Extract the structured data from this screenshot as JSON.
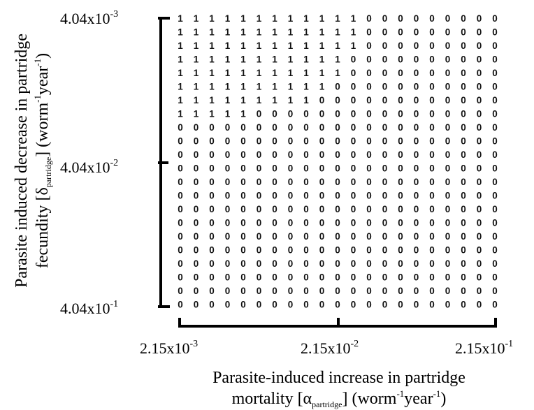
{
  "chart_data": {
    "type": "heatmap",
    "xlabel": {
      "line1": "Parasite-induced increase in partridge",
      "line2_prefix": "mortality [α",
      "line2_subscript": "partridge",
      "line2_mid": "] (worm",
      "line2_sup1": "-1",
      "line2_year": "year",
      "line2_sup2": "-1",
      "line2_end": ")"
    },
    "ylabel": {
      "line1": "Parasite induced decrease in partridge",
      "line2_prefix": "fecundity [δ",
      "line2_subscript": "partridge",
      "line2_mid": "] (worm",
      "line2_sup1": "-1",
      "line2_year": "year",
      "line2_sup2": "-1",
      "line2_end": ")"
    },
    "x_ticks": [
      {
        "base": "2.15x10",
        "exp": "-3"
      },
      {
        "base": "2.15x10",
        "exp": "-2"
      },
      {
        "base": "2.15x10",
        "exp": "-1"
      }
    ],
    "y_ticks": [
      {
        "base": "4.04x10",
        "exp": "-3"
      },
      {
        "base": "4.04x10",
        "exp": "-2"
      },
      {
        "base": "4.04x10",
        "exp": "-1"
      }
    ],
    "x_scale": "log",
    "y_scale": "log",
    "ncols": 21,
    "nrows": 22,
    "ones_per_row": [
      12,
      12,
      12,
      11,
      11,
      10,
      9,
      5,
      0,
      0,
      0,
      0,
      0,
      0,
      0,
      0,
      0,
      0,
      0,
      0,
      0,
      0
    ],
    "grid": false,
    "legend": "none"
  }
}
